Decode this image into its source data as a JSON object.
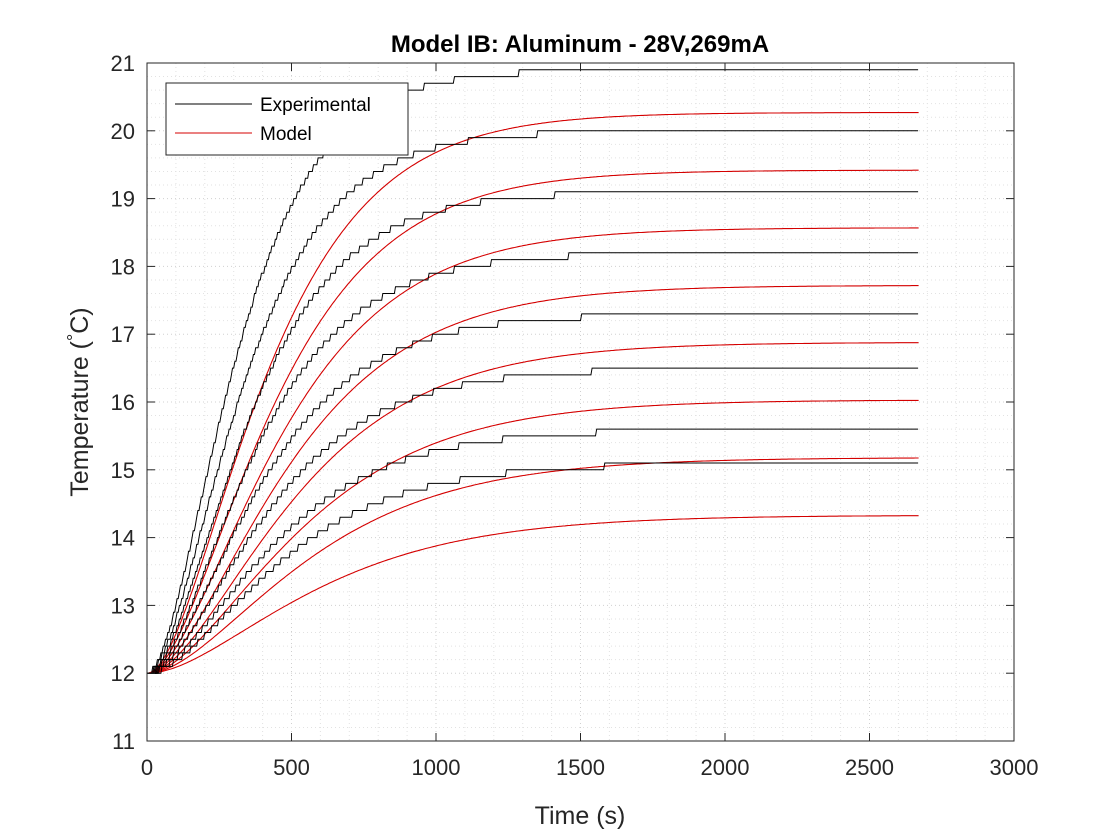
{
  "chart_data": {
    "type": "line",
    "title": "Model IB: Aluminum - 28V,269mA",
    "xlabel": "Time (s)",
    "ylabel_prefix": "Temperature (",
    "ylabel_unit": "°C",
    "ylabel_suffix": ")",
    "xlim": [
      0,
      3000
    ],
    "ylim": [
      11,
      21
    ],
    "xticks": [
      0,
      500,
      1000,
      1500,
      2000,
      2500,
      3000
    ],
    "yticks": [
      11,
      12,
      13,
      14,
      15,
      16,
      17,
      18,
      19,
      20,
      21
    ],
    "grid": "major and minor, dotted",
    "legend_position": "top-left",
    "legend": [
      {
        "label": "Experimental",
        "color": "#000000"
      },
      {
        "label": "Model",
        "color": "#d40000"
      }
    ],
    "start_temperature": 12,
    "end_time": 2670,
    "series": [
      {
        "name": "Experimental",
        "color": "#000000",
        "final_values": [
          15.1,
          15.6,
          16.5,
          17.3,
          18.2,
          19.1,
          20.0,
          20.9
        ]
      },
      {
        "name": "Model",
        "color": "#d40000",
        "final_values": [
          14.33,
          15.18,
          16.03,
          16.88,
          17.72,
          18.57,
          19.42,
          20.27
        ]
      }
    ]
  }
}
